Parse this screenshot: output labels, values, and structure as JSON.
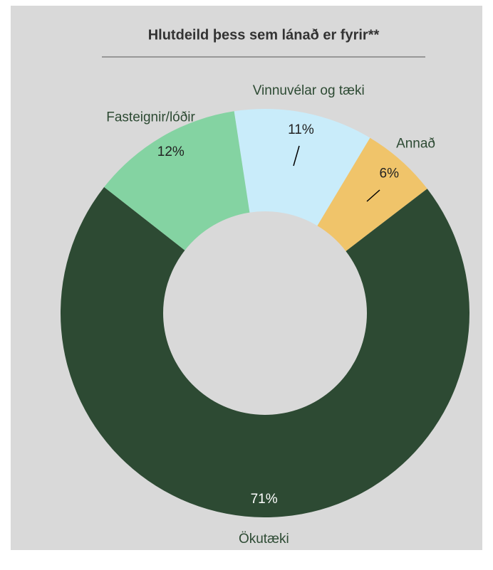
{
  "chart_data": {
    "type": "donut",
    "title": "Hlutdeild þess sem lánað er fyrir**",
    "categories": [
      "Vinnuvélar og tæki",
      "Annað",
      "Ökutæki",
      "Fasteignir/lóðir"
    ],
    "values": [
      11,
      6,
      71,
      12
    ],
    "value_labels": [
      "11%",
      "6%",
      "71%",
      "12%"
    ],
    "colors": [
      "#c9ecfa",
      "#f0c46a",
      "#2d4a33",
      "#84d3a2"
    ]
  }
}
